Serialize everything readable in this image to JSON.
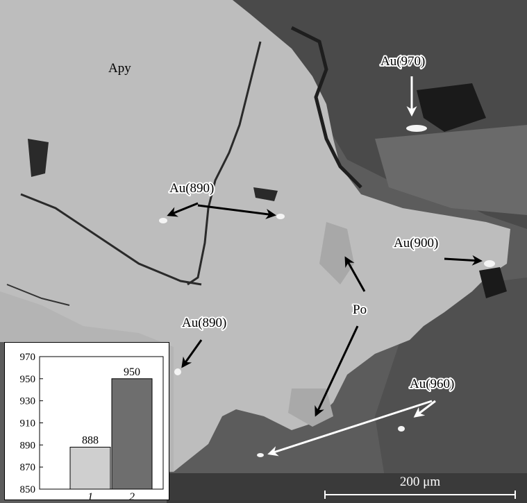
{
  "image": {
    "description_colors": {
      "arsenopyrite": "#bdbdbd",
      "matrix": "#5a5a5a",
      "dark_grain": "#3c3c3c",
      "crack": "#2a2a2a"
    }
  },
  "labels": {
    "apy": "Apy",
    "au970": "Au(970)",
    "au890_top": "Au(890)",
    "au900": "Au(900)",
    "po": "Po",
    "au890_bottom": "Au(890)",
    "au960": "Au(960)"
  },
  "scale_bar": {
    "label": "200 μm"
  },
  "chart_data": {
    "type": "bar",
    "categories": [
      "1",
      "2"
    ],
    "values": [
      888,
      950
    ],
    "value_labels": [
      "888",
      "950"
    ],
    "ylim": [
      850,
      970
    ],
    "yticks": [
      850,
      870,
      890,
      910,
      930,
      950,
      970
    ],
    "colors": [
      "#cfcfcf",
      "#6e6e6e"
    ]
  }
}
